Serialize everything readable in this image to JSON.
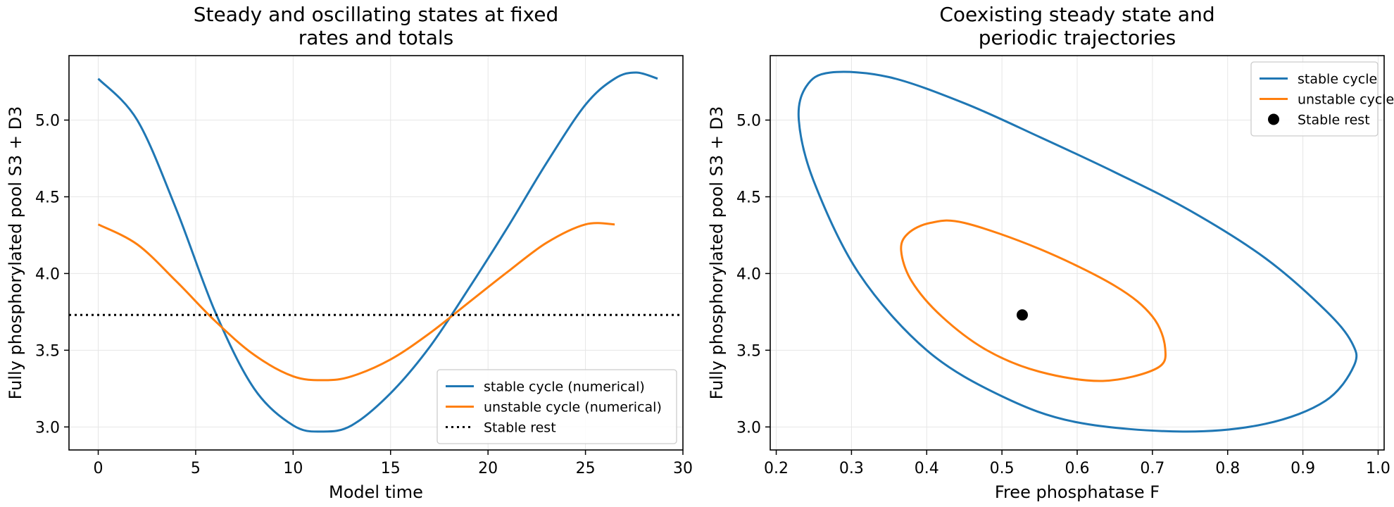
{
  "chart_data": [
    {
      "type": "line",
      "title": "Steady and oscillating states at fixed rates and totals",
      "xlabel": "Model time",
      "ylabel": "Fully phosphorylated pool S3 + D3",
      "xlim": [
        -1.5,
        30
      ],
      "ylim": [
        2.85,
        5.42
      ],
      "xticks": [
        0,
        5,
        10,
        15,
        20,
        25,
        30
      ],
      "yticks": [
        3.0,
        3.5,
        4.0,
        4.5,
        5.0
      ],
      "grid": true,
      "legend_position": "bottom-right",
      "series": [
        {
          "name": "stable cycle (numerical)",
          "color": "#1f77b4",
          "style": "solid",
          "x": [
            0,
            2,
            4,
            6,
            8,
            10,
            11.5,
            13,
            15,
            17,
            19,
            21,
            23,
            25,
            26.5,
            27.6,
            28.7
          ],
          "y": [
            5.27,
            5.0,
            4.42,
            3.75,
            3.25,
            3.01,
            2.97,
            3.01,
            3.22,
            3.52,
            3.9,
            4.3,
            4.72,
            5.1,
            5.27,
            5.31,
            5.27
          ]
        },
        {
          "name": "unstable cycle (numerical)",
          "color": "#ff7f0e",
          "style": "solid",
          "x": [
            0,
            2,
            4,
            6,
            8,
            10,
            11.6,
            13,
            15,
            17,
            19,
            21,
            23,
            25,
            26.5
          ],
          "y": [
            4.32,
            4.19,
            3.95,
            3.69,
            3.47,
            3.33,
            3.305,
            3.33,
            3.44,
            3.61,
            3.81,
            4.01,
            4.2,
            4.32,
            4.32
          ]
        },
        {
          "name": "Stable rest",
          "color": "#000000",
          "style": "dotted",
          "x": [
            -1.5,
            30
          ],
          "y": [
            3.73,
            3.73
          ]
        }
      ]
    },
    {
      "type": "line",
      "title": "Coexisting steady state and periodic trajectories",
      "xlabel": "Free phosphatase F",
      "ylabel": "Fully phosphorylated pool S3 + D3",
      "xlim": [
        0.192,
        1.008
      ],
      "ylim": [
        2.85,
        5.42
      ],
      "xticks": [
        0.2,
        0.3,
        0.4,
        0.5,
        0.6,
        0.7,
        0.8,
        0.9,
        1.0
      ],
      "yticks": [
        3.0,
        3.5,
        4.0,
        4.5,
        5.0
      ],
      "grid": true,
      "legend_position": "top-right",
      "series": [
        {
          "name": "stable cycle",
          "color": "#1f77b4",
          "style": "solid",
          "x": [
            0.272,
            0.35,
            0.45,
            0.55,
            0.65,
            0.75,
            0.85,
            0.93,
            0.965,
            0.968,
            0.93,
            0.85,
            0.74,
            0.6,
            0.5,
            0.4,
            0.31,
            0.25,
            0.23,
            0.24,
            0.272
          ],
          "y": [
            5.31,
            5.28,
            5.11,
            4.89,
            4.66,
            4.41,
            4.1,
            3.76,
            3.55,
            3.4,
            3.17,
            3.02,
            2.97,
            3.03,
            3.2,
            3.5,
            4.0,
            4.6,
            5.0,
            5.22,
            5.31
          ]
        },
        {
          "name": "unstable cycle",
          "color": "#ff7f0e",
          "style": "solid",
          "x": [
            0.405,
            0.45,
            0.55,
            0.65,
            0.7,
            0.717,
            0.705,
            0.634,
            0.55,
            0.48,
            0.42,
            0.38,
            0.366,
            0.375,
            0.405
          ],
          "y": [
            4.33,
            4.33,
            4.16,
            3.92,
            3.72,
            3.51,
            3.38,
            3.3,
            3.36,
            3.5,
            3.72,
            3.95,
            4.15,
            4.26,
            4.33
          ]
        },
        {
          "name": "Stable rest",
          "color": "#000000",
          "style": "marker",
          "x": [
            0.527
          ],
          "y": [
            3.73
          ]
        }
      ]
    }
  ]
}
